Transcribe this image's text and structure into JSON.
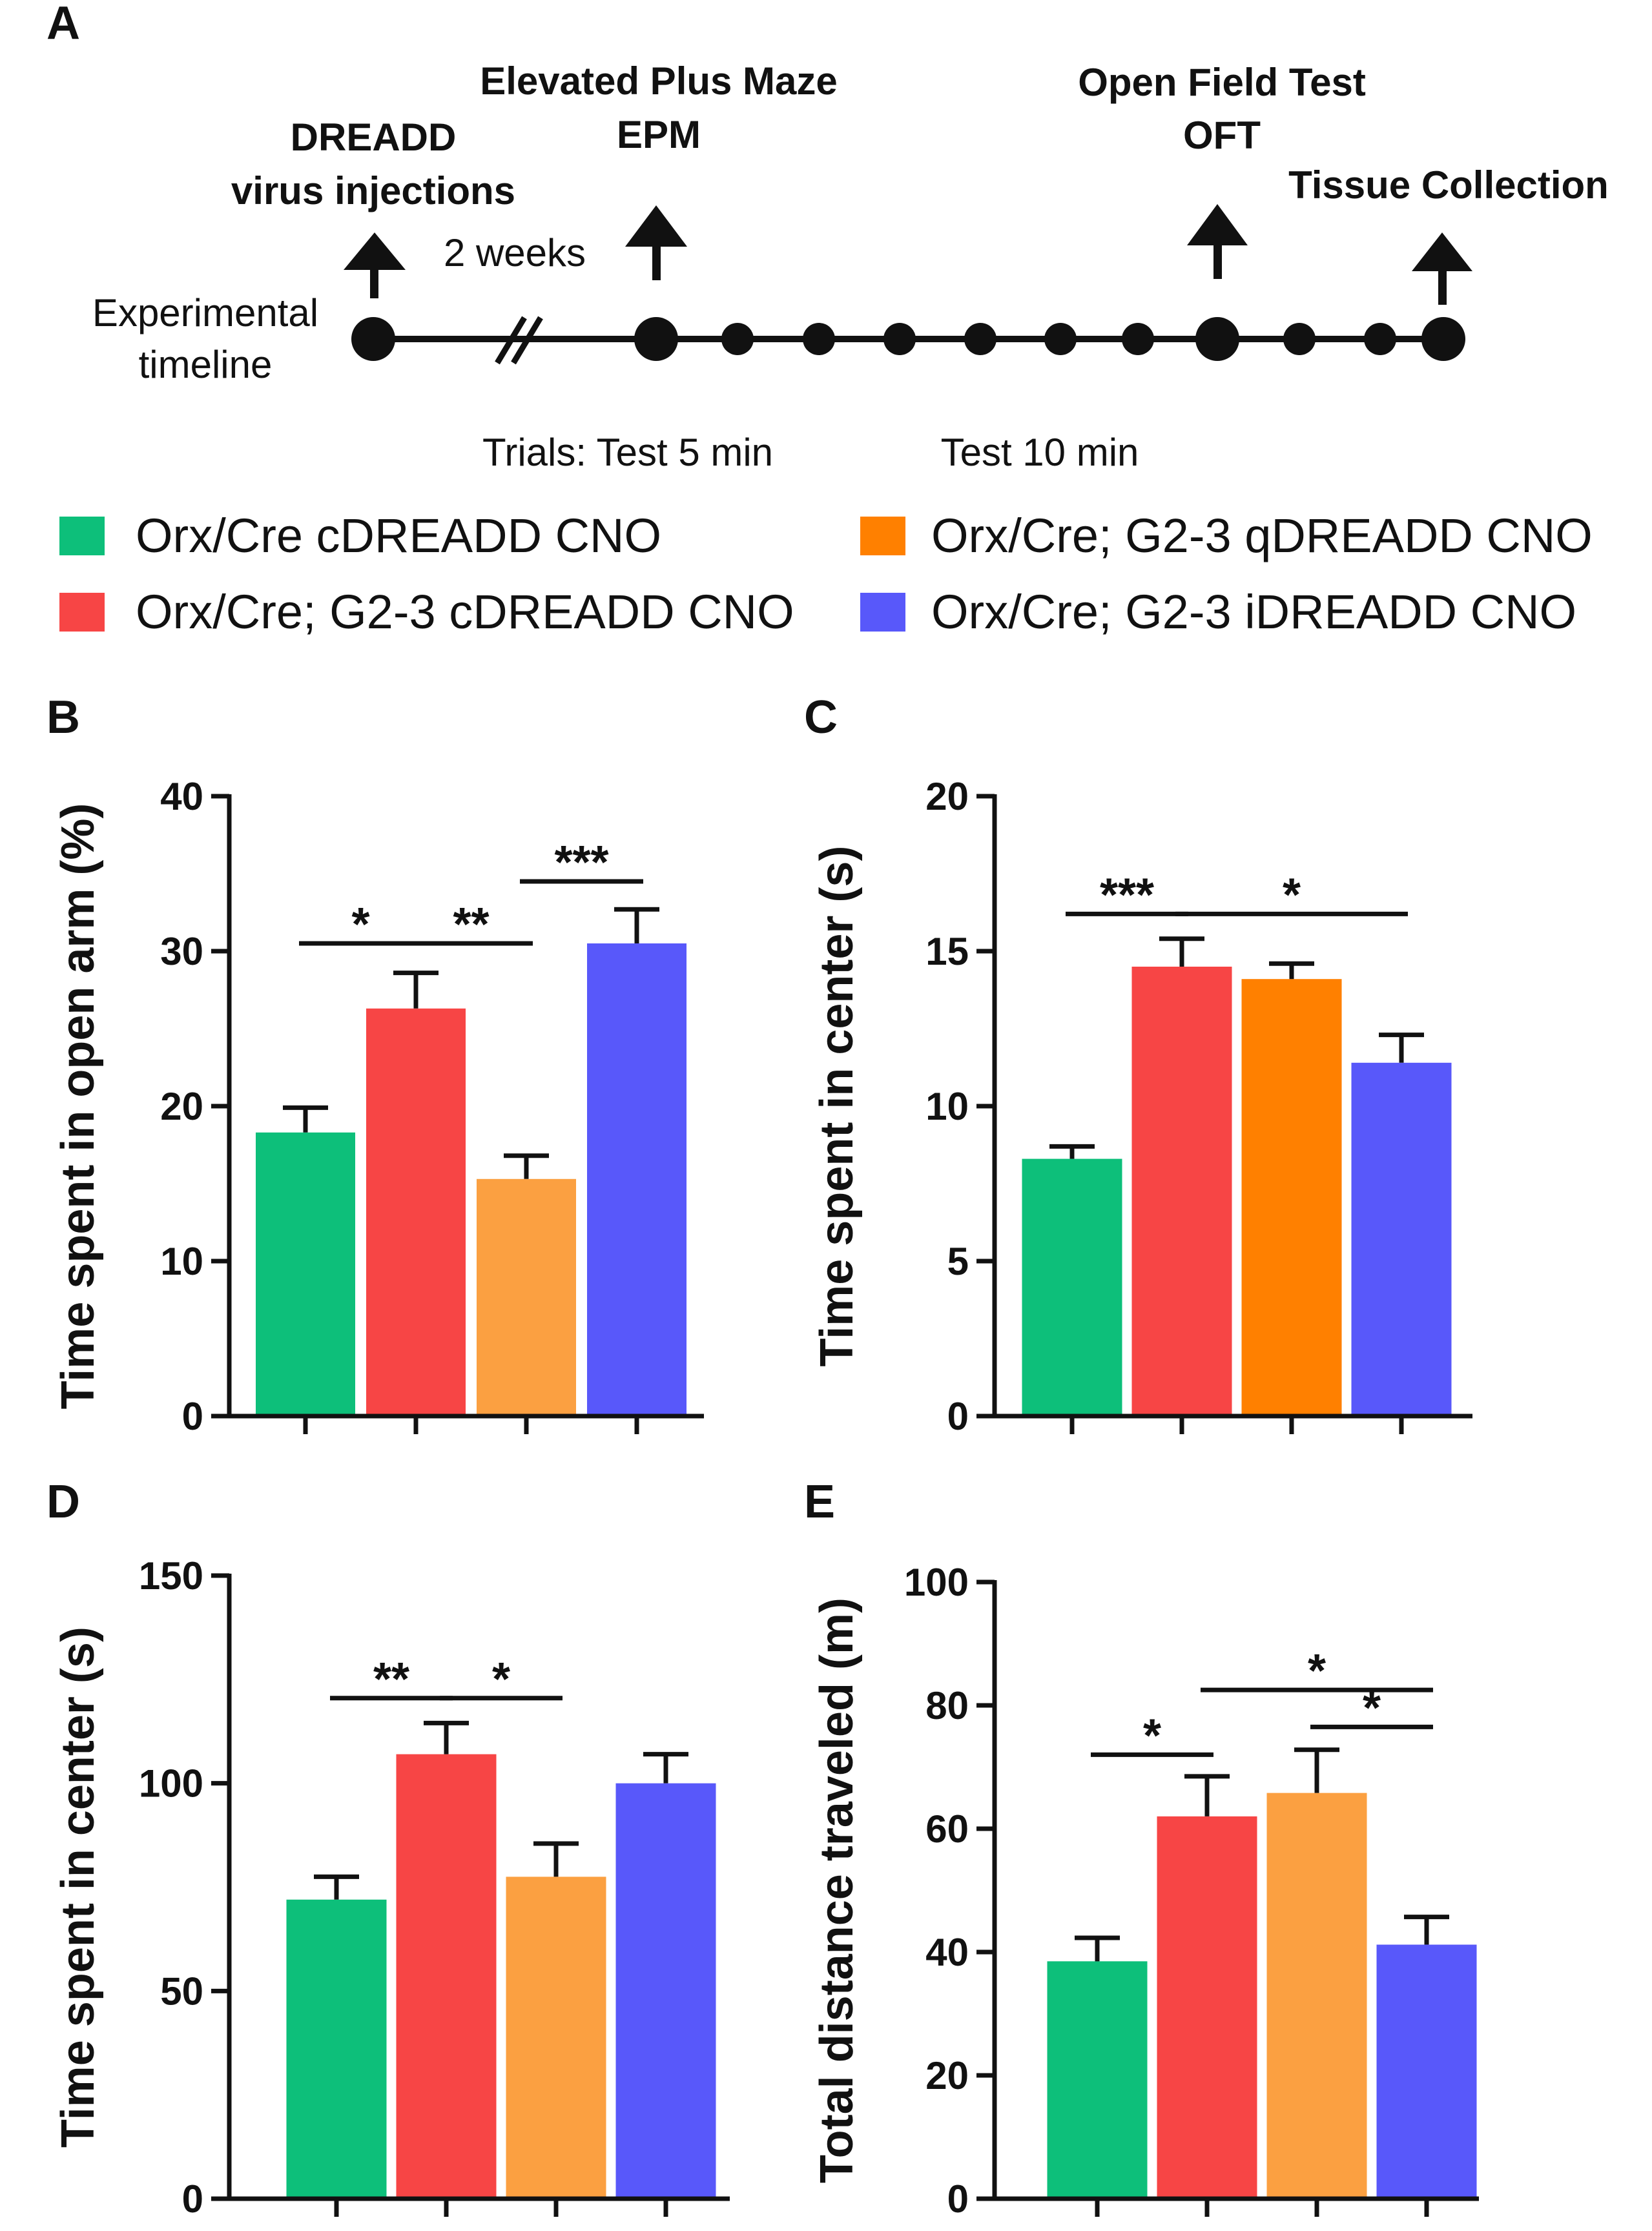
{
  "panel_a": {
    "letter": "A",
    "timeline_label_line1": "Experimental",
    "timeline_label_line2": "timeline",
    "events": [
      {
        "line1": "DREADD",
        "line2": "virus injections"
      },
      {
        "line1": "Elevated Plus Maze",
        "line2": "EPM"
      },
      {
        "line1": "Open Field Test",
        "line2": "OFT"
      },
      {
        "line1": "Tissue Collection",
        "line2": ""
      }
    ],
    "interval_label": "2 weeks",
    "trials_label": "Trials: Test 5 min",
    "test10_label": "Test 10 min"
  },
  "legend": [
    {
      "label": "Orx/Cre cDREADD CNO",
      "color": "#0dbf7a"
    },
    {
      "label": "Orx/Cre; G2-3 cDREADD CNO",
      "color": "#f74545"
    },
    {
      "label": "Orx/Cre; G2-3 qDREADD CNO",
      "color": "#ff8000"
    },
    {
      "label": "Orx/Cre; G2-3 iDREADD CNO",
      "color": "#5858fa"
    }
  ],
  "chart_data": [
    {
      "panel": "B",
      "type": "bar",
      "ylabel": "Time spent in open arm (%)",
      "ylim": [
        0,
        40
      ],
      "yticks": [
        "0",
        "10",
        "20",
        "30",
        "40"
      ],
      "categories": [
        "Orx/Cre cDREADD CNO",
        "Orx/Cre; G2-3 cDREADD CNO",
        "Orx/Cre; G2-3 qDREADD CNO",
        "Orx/Cre; G2-3 iDREADD CNO"
      ],
      "values": [
        18.3,
        26.3,
        15.3,
        30.5
      ],
      "errors": [
        1.6,
        2.3,
        1.5,
        2.2
      ],
      "colors": [
        "#0dbf7a",
        "#f74545",
        "#fba041",
        "#5858fa"
      ],
      "significance": [
        {
          "from": 0,
          "to": 1,
          "label": "*",
          "y": 30.5
        },
        {
          "from": 1,
          "to": 2,
          "label": "**",
          "y": 30.5
        },
        {
          "from": 2,
          "to": 3,
          "label": "***",
          "y": 34.5
        }
      ]
    },
    {
      "panel": "C",
      "type": "bar",
      "ylabel": "Time spent in center (s)",
      "ylim": [
        0,
        20
      ],
      "yticks": [
        "0",
        "5",
        "10",
        "15",
        "20"
      ],
      "categories": [
        "Orx/Cre cDREADD CNO",
        "Orx/Cre; G2-3 cDREADD CNO",
        "Orx/Cre; G2-3 qDREADD CNO",
        "Orx/Cre; G2-3 iDREADD CNO"
      ],
      "values": [
        8.3,
        14.5,
        14.1,
        11.4
      ],
      "errors": [
        0.4,
        0.9,
        0.5,
        0.9
      ],
      "colors": [
        "#0dbf7a",
        "#f74545",
        "#ff8000",
        "#5858fa"
      ],
      "significance": [
        {
          "from": 0,
          "to": 1,
          "label": "***",
          "y": 16.2
        },
        {
          "from": 1,
          "to": 3,
          "label": "*",
          "y": 16.2
        }
      ]
    },
    {
      "panel": "D",
      "type": "bar",
      "ylabel": "Time spent in center (s)",
      "ylim": [
        0,
        150
      ],
      "yticks": [
        "0",
        "50",
        "100",
        "150"
      ],
      "categories": [
        "Orx/Cre cDREADD CNO",
        "Orx/Cre; G2-3 cDREADD CNO",
        "Orx/Cre; G2-3 qDREADD CNO",
        "Orx/Cre; G2-3 iDREADD CNO"
      ],
      "values": [
        72,
        107,
        77.5,
        100
      ],
      "errors": [
        5.5,
        7.5,
        8,
        7
      ],
      "colors": [
        "#0dbf7a",
        "#f74545",
        "#fba041",
        "#5858fa"
      ],
      "significance": [
        {
          "from": 0,
          "to": 1,
          "label": "**",
          "y": 120.5
        },
        {
          "from": 1,
          "to": 2,
          "label": "*",
          "y": 120.5
        }
      ]
    },
    {
      "panel": "E",
      "type": "bar",
      "ylabel": "Total distance traveled (m)",
      "ylim": [
        0,
        100
      ],
      "yticks": [
        "0",
        "20",
        "40",
        "60",
        "80",
        "100"
      ],
      "categories": [
        "Orx/Cre cDREADD CNO",
        "Orx/Cre; G2-3 cDREADD CNO",
        "Orx/Cre; G2-3 qDREADD CNO",
        "Orx/Cre; G2-3 iDREADD CNO"
      ],
      "values": [
        38.5,
        62,
        65.8,
        41.2
      ],
      "errors": [
        3.8,
        6.5,
        7,
        4.5
      ],
      "colors": [
        "#0dbf7a",
        "#f74545",
        "#fba041",
        "#5858fa"
      ],
      "significance": [
        {
          "from": 0,
          "to": 1,
          "label": "*",
          "y": 72
        },
        {
          "from": 1,
          "to": 3,
          "label": "*",
          "y": 82.5
        },
        {
          "from": 2,
          "to": 3,
          "label": "*",
          "y": 76.5
        }
      ]
    }
  ]
}
